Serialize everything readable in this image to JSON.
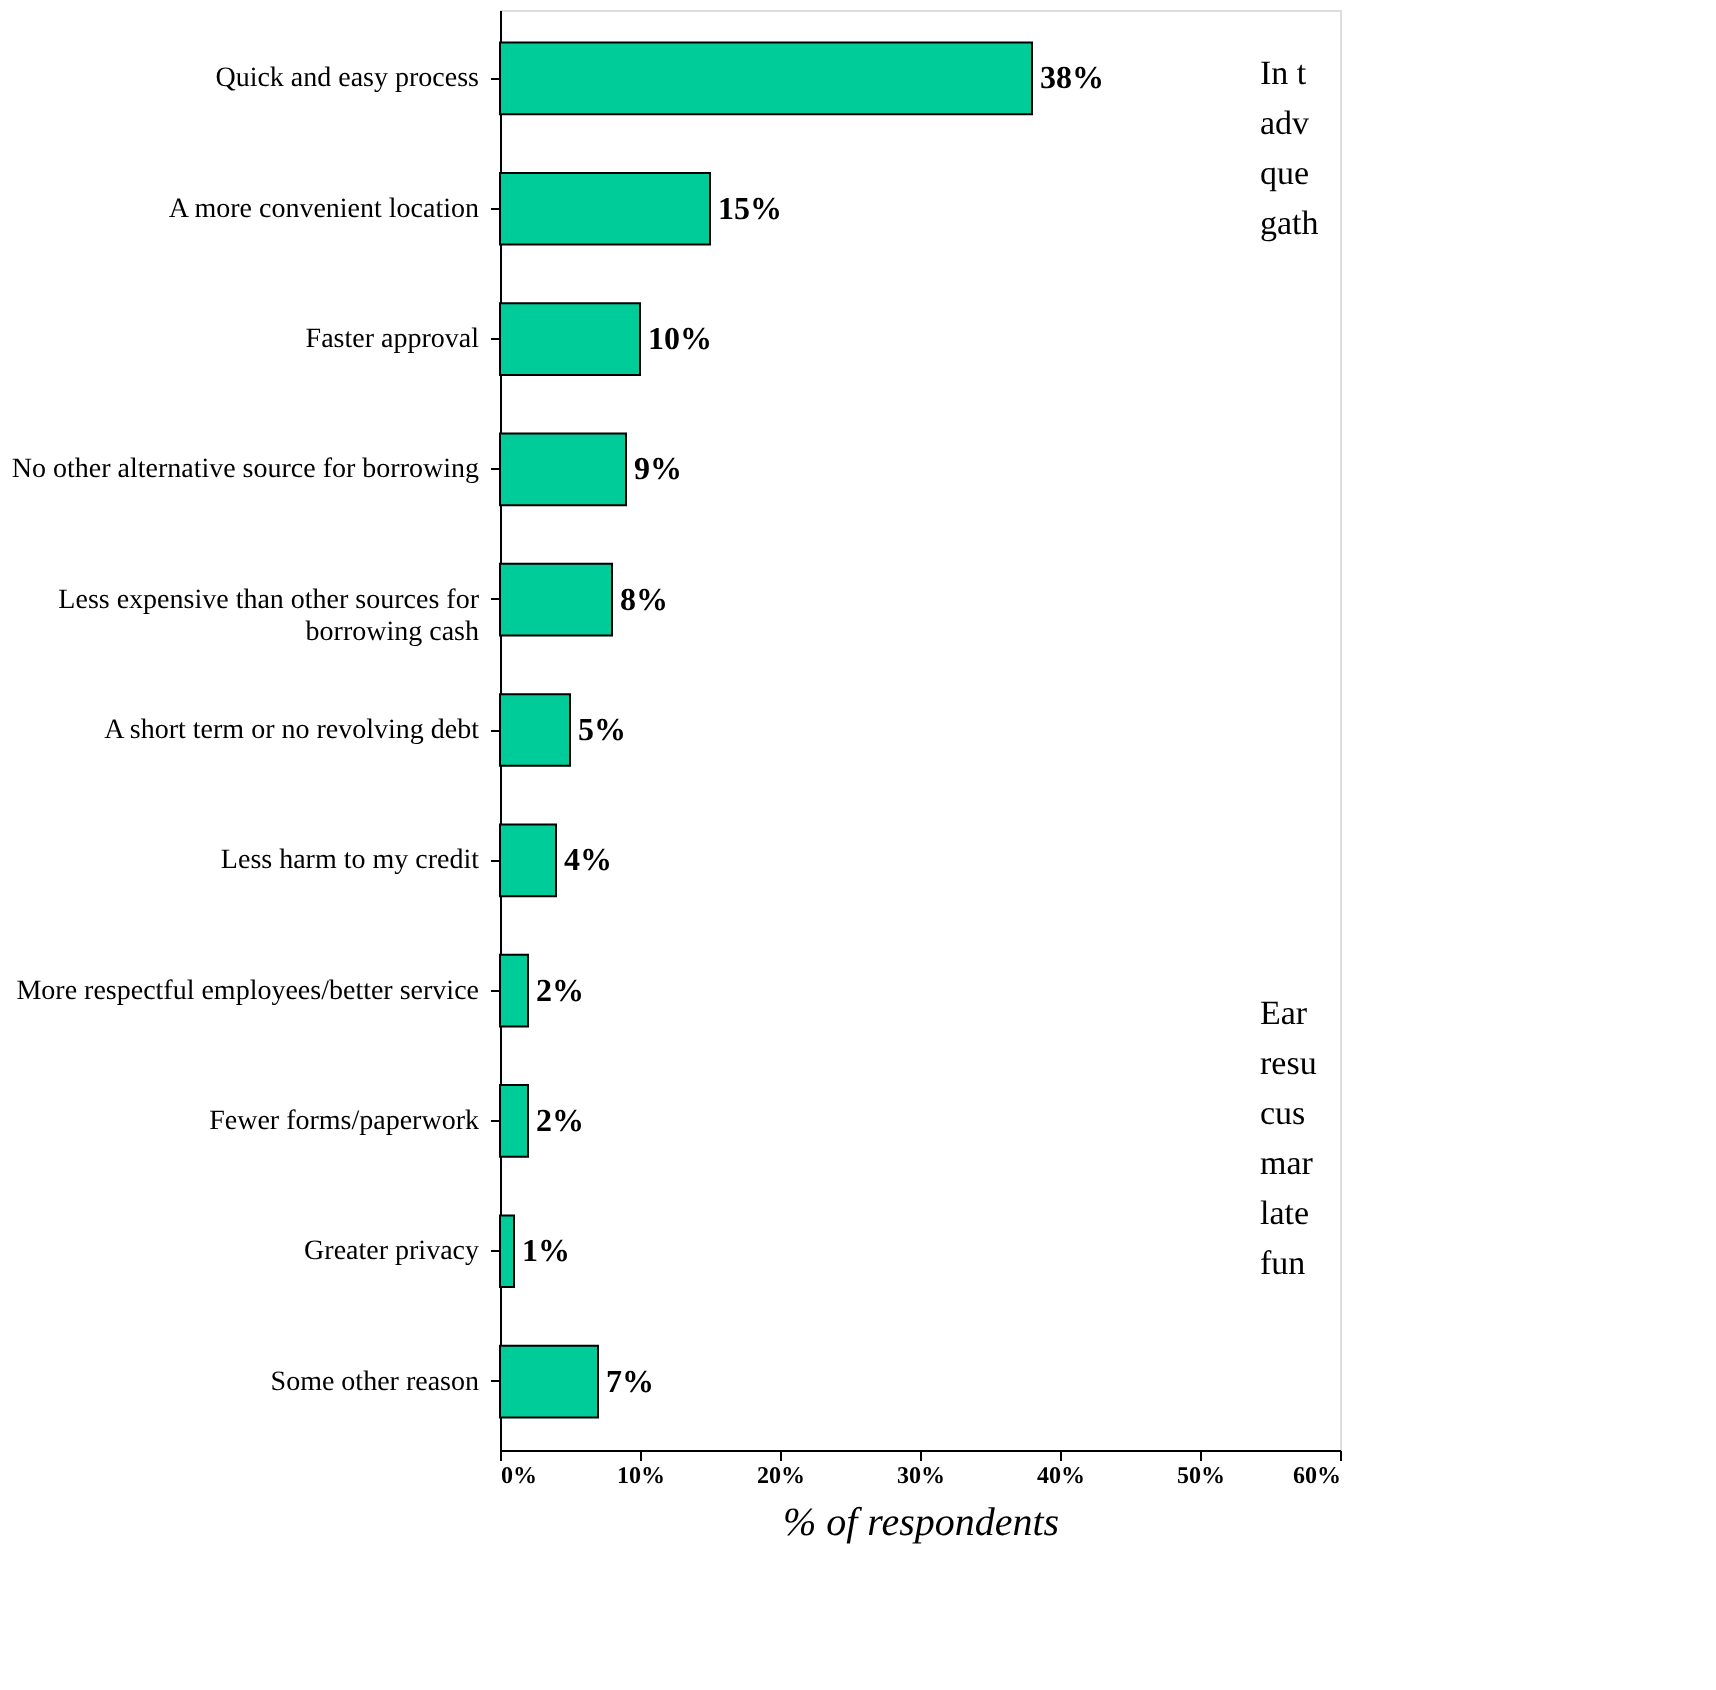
{
  "chart_data": {
    "type": "bar",
    "orientation": "horizontal",
    "xlabel": "% of respondents",
    "categories": [
      "Quick and easy process",
      "A more convenient location",
      "Faster approval",
      "No other alternative source for borrowing",
      "Less expensive than other sources for borrowing cash",
      "A short term or no revolving debt",
      "Less harm to my credit",
      "More respectful employees/better service",
      "Fewer forms/paperwork",
      "Greater privacy",
      "Some other reason"
    ],
    "values": [
      38,
      15,
      10,
      9,
      8,
      5,
      4,
      2,
      2,
      1,
      7
    ],
    "value_labels": [
      "38%",
      "15%",
      "10%",
      "9%",
      "8%",
      "5%",
      "4%",
      "2%",
      "2%",
      "1%",
      "7%"
    ],
    "color": "#00cc99",
    "xlim": [
      0,
      60
    ],
    "xticks": [
      {
        "value": 0,
        "label": "0%"
      },
      {
        "value": 10,
        "label": "10%"
      },
      {
        "value": 20,
        "label": "20%"
      },
      {
        "value": 30,
        "label": "30%"
      },
      {
        "value": 40,
        "label": "40%"
      },
      {
        "value": 50,
        "label": "50%"
      },
      {
        "value": 60,
        "label": "60%"
      }
    ],
    "grid": false,
    "annotations": [
      "In t",
      "adv",
      "que",
      "gath",
      "Ear",
      "resu",
      "cus",
      "mar",
      "late",
      "fun"
    ]
  }
}
